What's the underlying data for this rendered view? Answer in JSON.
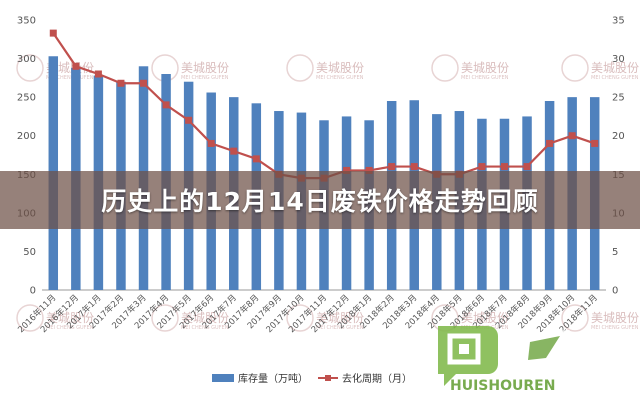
{
  "banner": {
    "title": "历史上的12月14日废铁价格走势回顾"
  },
  "watermark": {
    "brand": "美城股份",
    "sub": "MEI CHENG GUFEN"
  },
  "logo": {
    "text": "HUISHOUREN"
  },
  "colors": {
    "bar": "#4f81bd",
    "line": "#c0504d",
    "banner": "#6e5046"
  },
  "chart_data": {
    "type": "bar",
    "categories": [
      "2016年11月",
      "2016年12月",
      "2017年1月",
      "2017年2月",
      "2017年3月",
      "2017年4月",
      "2017年5月",
      "2017年6月",
      "2017年7月",
      "2017年8月",
      "2017年9月",
      "2017年10月",
      "2017年11月",
      "2017年12月",
      "2018年1月",
      "2018年2月",
      "2018年3月",
      "2018年4月",
      "2018年5月",
      "2018年6月",
      "2018年7月",
      "2018年8月",
      "2018年9月",
      "2018年10月",
      "2018年11月"
    ],
    "series": [
      {
        "name": "库存量（万吨）",
        "type": "bar",
        "axis": "left",
        "values": [
          303,
          288,
          278,
          270,
          290,
          280,
          270,
          256,
          250,
          242,
          232,
          230,
          220,
          225,
          220,
          245,
          246,
          228,
          232,
          222,
          222,
          225,
          245,
          250,
          250
        ]
      },
      {
        "name": "去化周期（月）",
        "type": "line",
        "axis": "right",
        "values": [
          33.3,
          29,
          28,
          26.8,
          26.8,
          24,
          22,
          19,
          18,
          17,
          15,
          14.5,
          14.5,
          15.5,
          15.5,
          16,
          16,
          15,
          15,
          16,
          16,
          16,
          19,
          20,
          19
        ]
      }
    ],
    "yleft": {
      "ticks": [
        0,
        50,
        100,
        150,
        200,
        250,
        300,
        350
      ],
      "lim": [
        0,
        350
      ]
    },
    "yright": {
      "ticks": [
        0,
        5,
        10,
        15,
        20,
        25,
        30,
        35
      ],
      "lim": [
        0,
        35
      ]
    },
    "legend": "bottom",
    "grid": false
  }
}
